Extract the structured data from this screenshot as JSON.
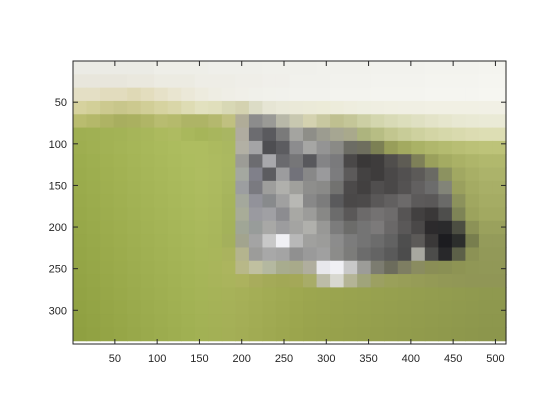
{
  "chart_data": {
    "type": "heatmap",
    "title": "",
    "xlabel": "",
    "ylabel": "",
    "xlim": [
      1,
      512
    ],
    "ylim": [
      1,
      340
    ],
    "y_direction": "reversed",
    "grid": false,
    "legend": "none",
    "xticks": [
      50,
      100,
      150,
      200,
      250,
      300,
      350,
      400,
      450,
      500
    ],
    "yticks": [
      50,
      100,
      150,
      200,
      250,
      300
    ],
    "block_size": 16,
    "grid_cols": 32,
    "grid_rows": 21,
    "content": "pixelated image of a grey and black cat lying on grass",
    "rows": [
      [
        "#ebebe5",
        "#ebebe5",
        "#ebebe5",
        "#ebebe5",
        "#ebebe5",
        "#ebebe5",
        "#eeeee8",
        "#eeeee8",
        "#eeeee8",
        "#eeeee8",
        "#efefea",
        "#efefea",
        "#efefea",
        "#efefea",
        "#f0f0eb",
        "#f0f0eb",
        "#f0f0eb",
        "#f0f0eb",
        "#f1f1ec",
        "#f1f1ec",
        "#f1f1ec",
        "#f1f1ec",
        "#f2f2ed",
        "#f2f2ed",
        "#f2f2ed",
        "#f2f2ed",
        "#f3f3ee",
        "#f3f3ee",
        "#f3f3ee",
        "#f3f3ee",
        "#f4f4ef",
        "#f4f4ef"
      ],
      [
        "#e8e6dc",
        "#e8e6dc",
        "#e8e6dc",
        "#e8e6dc",
        "#eae8de",
        "#eae8de",
        "#ecebe2",
        "#ecebe2",
        "#ecebe2",
        "#eeede6",
        "#eeede6",
        "#eeede6",
        "#efeee8",
        "#efeee8",
        "#f0efea",
        "#f0efea",
        "#f1f1ec",
        "#f1f1ec",
        "#f1f1ec",
        "#f2f2ed",
        "#f2f2ed",
        "#f2f2ed",
        "#f3f3ee",
        "#f3f3ee",
        "#f3f3ee",
        "#f3f3ee",
        "#f4f4ef",
        "#f4f4ef",
        "#f4f4ef",
        "#f4f4ef",
        "#f5f5f0",
        "#f5f5f0"
      ],
      [
        "#e4dfc5",
        "#e4dfc5",
        "#e2dcbe",
        "#e2dcbe",
        "#dfd9b6",
        "#e3ddbe",
        "#e6e1c8",
        "#e9e5d0",
        "#ebe8d8",
        "#edebde",
        "#eeede3",
        "#efeee6",
        "#f0efe8",
        "#f0f0ea",
        "#f1f1eb",
        "#f1f1ec",
        "#f2f2ed",
        "#f2f2ed",
        "#f2f2ed",
        "#f3f3ee",
        "#f3f3ee",
        "#f3f3ee",
        "#f4f4ef",
        "#f4f4ef",
        "#f4f4ef",
        "#f4f4ef",
        "#f5f5f0",
        "#f5f5f0",
        "#f5f5f0",
        "#f5f5f0",
        "#f6f6f1",
        "#f6f6f1"
      ],
      [
        "#d6d29e",
        "#d2cf98",
        "#ccc98f",
        "#c8c68b",
        "#ccc98f",
        "#d1ce97",
        "#d6d3a0",
        "#d9d6a8",
        "#dedcb4",
        "#e2e1bf",
        "#e0dfbc",
        "#d8d8b5",
        "#d4d2b0",
        "#dcdcc6",
        "#e6e5d4",
        "#e9e8d8",
        "#eae9d8",
        "#ebead8",
        "#ecebd8",
        "#edecdb",
        "#eeedde",
        "#eeeee0",
        "#efeee1",
        "#f0efe2",
        "#f0efe3",
        "#f0efe3",
        "#f1f0e4",
        "#f1f0e4",
        "#f1f0e4",
        "#f1f0e4",
        "#f1f0e5",
        "#f1f0e5"
      ],
      [
        "#b9bc6f",
        "#b4b86a",
        "#aeb364",
        "#a8ae5f",
        "#aab060",
        "#b0b566",
        "#b8bc70",
        "#b5ba6c",
        "#aeb466",
        "#aeb466",
        "#b4b86e",
        "#c0c080",
        "#b0ac98",
        "#8c8c8c",
        "#9a9a96",
        "#b8b8a8",
        "#c8c8b0",
        "#d4d2b0",
        "#c8c8a0",
        "#bfc090",
        "#c4c698",
        "#cccfa4",
        "#d3d6ae",
        "#d8dab6",
        "#dcdebc",
        "#dfe0c2",
        "#e3e3c8",
        "#e6e6cd",
        "#e8e8d2",
        "#e9e9d4",
        "#eaead6",
        "#eaead6"
      ],
      [
        "#9faf52",
        "#a0b053",
        "#a2b255",
        "#a3b356",
        "#a6b559",
        "#a8b75b",
        "#acba5e",
        "#aebb61",
        "#a9b85c",
        "#a6b559",
        "#a8b65d",
        "#a9b662",
        "#b0aca0",
        "#6c6c70",
        "#5a5a5e",
        "#7a7a7a",
        "#a4a4a0",
        "#8e8e88",
        "#9c9c90",
        "#a6a692",
        "#a9a98c",
        "#adb47e",
        "#b7bd84",
        "#c2c68f",
        "#c8cc98",
        "#ced19f",
        "#d3d5a5",
        "#d6d8aa",
        "#d9daae",
        "#dcdcb2",
        "#dddeb4",
        "#dddeb4"
      ],
      [
        "#9eae50",
        "#a0b052",
        "#a2b254",
        "#a4b456",
        "#a6b658",
        "#a8b85a",
        "#aaba5c",
        "#acbc5e",
        "#aebd60",
        "#aebd60",
        "#acba5f",
        "#aab860",
        "#b2b0a4",
        "#a4a4a6",
        "#4e4e52",
        "#5c5c60",
        "#8c8c8e",
        "#a6a6a4",
        "#949494",
        "#8a8a86",
        "#6c6c64",
        "#6e6e5e",
        "#7c8054",
        "#989e5a",
        "#a3aa60",
        "#aab266",
        "#b0b76c",
        "#b4bb70",
        "#b8be74",
        "#bbc177",
        "#bdc379",
        "#bdc379"
      ],
      [
        "#9cad4e",
        "#9eaf50",
        "#a1b152",
        "#a3b354",
        "#a5b557",
        "#a7b759",
        "#a9b95b",
        "#abbb5d",
        "#adbd5f",
        "#aebd60",
        "#adbb60",
        "#abb960",
        "#9c9c96",
        "#6c6c70",
        "#a8a8ac",
        "#6a6a6e",
        "#767678",
        "#58585c",
        "#848486",
        "#7a7a7c",
        "#4a4848",
        "#3a3838",
        "#3e3c3c",
        "#504e4c",
        "#5e5c54",
        "#7e8058",
        "#9aa05c",
        "#a4ab62",
        "#aab166",
        "#aeb56a",
        "#b1b86d",
        "#b1b86d"
      ],
      [
        "#9bac4d",
        "#9dae4f",
        "#a0b051",
        "#a2b253",
        "#a4b456",
        "#a6b658",
        "#a8b85a",
        "#aaba5c",
        "#acbc5e",
        "#aebd60",
        "#adbb60",
        "#aab860",
        "#a4a8a0",
        "#80808a",
        "#5c5c60",
        "#9c9c9e",
        "#72727a",
        "#888888",
        "#9a9a9c",
        "#7c7c7e",
        "#5c5a5a",
        "#444242",
        "#3e3c3c",
        "#4a4848",
        "#525050",
        "#5c5a58",
        "#6a6a64",
        "#8c9260",
        "#a1a862",
        "#a8af66",
        "#acb36a",
        "#acb36a"
      ],
      [
        "#9aab4c",
        "#9cad4e",
        "#9faf50",
        "#a1b152",
        "#a3b355",
        "#a5b557",
        "#a7b759",
        "#a9b95b",
        "#abbb5d",
        "#adbc5f",
        "#acba5f",
        "#a8b65e",
        "#9c9ea0",
        "#7a7a80",
        "#9e9e9c",
        "#b0b0ac",
        "#a0a09c",
        "#8e8e8c",
        "#8a8a88",
        "#727270",
        "#4c4a4a",
        "#424040",
        "#504e4e",
        "#4a4848",
        "#545252",
        "#626060",
        "#6c6c6c",
        "#828478",
        "#9aa05e",
        "#a4ab63",
        "#a8af67",
        "#a8af67"
      ],
      [
        "#99aa4b",
        "#9bac4d",
        "#9eae4f",
        "#a0b051",
        "#a2b254",
        "#a4b456",
        "#a6b658",
        "#a8b85a",
        "#aaba5c",
        "#acbb5e",
        "#abb95e",
        "#a6b45c",
        "#a4a89c",
        "#92929a",
        "#888a8c",
        "#a0a0a0",
        "#b8b8b4",
        "#888888",
        "#7c7c7c",
        "#5a5a5c",
        "#4a4848",
        "#4c4a4a",
        "#5a5858",
        "#626060",
        "#6c6a6a",
        "#5c5a5a",
        "#5a5858",
        "#6a6a68",
        "#8c925c",
        "#a0a760",
        "#a5ac64",
        "#a5ac64"
      ],
      [
        "#98a94a",
        "#9aab4c",
        "#9dad4e",
        "#9faf50",
        "#a1b153",
        "#a3b355",
        "#a5b557",
        "#a7b759",
        "#a9b95b",
        "#abba5d",
        "#aab85d",
        "#a5b35b",
        "#a8ac98",
        "#9a9aa0",
        "#a0a0a4",
        "#8c8c90",
        "#a8a8a4",
        "#9c9c9a",
        "#888886",
        "#6c6c6c",
        "#5a5858",
        "#6c6a6a",
        "#747272",
        "#6e6c6c",
        "#565454",
        "#424040",
        "#3a3838",
        "#4e4e4c",
        "#7e8456",
        "#9ca35d",
        "#a2a961",
        "#a2a961"
      ],
      [
        "#97a849",
        "#99aa4b",
        "#9cac4d",
        "#9eae4f",
        "#a0b052",
        "#a2b254",
        "#a4b456",
        "#a6b658",
        "#a8b85a",
        "#aab95c",
        "#a9b75c",
        "#a4b25a",
        "#a0a696",
        "#989c9a",
        "#a8a8a6",
        "#9c9c9e",
        "#a4a4a2",
        "#b0b0ac",
        "#989896",
        "#7c7c7c",
        "#6c6c6a",
        "#747474",
        "#7c7a7a",
        "#6a6868",
        "#5a5858",
        "#4a4848",
        "#2c2a2c",
        "#2a2a2c",
        "#4c4e42",
        "#8c9257",
        "#9aa15d",
        "#9aa15d"
      ],
      [
        "#96a748",
        "#98a94a",
        "#9bab4c",
        "#9dad4e",
        "#9faf51",
        "#a1b153",
        "#a3b355",
        "#a5b557",
        "#a7b759",
        "#a9b85b",
        "#a8b65b",
        "#a4b05c",
        "#a2a48e",
        "#a4a4a4",
        "#c8c8c8",
        "#f0f0f4",
        "#b8b8b8",
        "#a0a09e",
        "#9c9c9a",
        "#8c8c8c",
        "#7c7c7c",
        "#747474",
        "#6c6c6c",
        "#626262",
        "#4e4e4e",
        "#5c5a58",
        "#3a3838",
        "#1c1c20",
        "#2c2e2c",
        "#787e4e",
        "#949b5a",
        "#949b5a"
      ],
      [
        "#95a647",
        "#97a849",
        "#9aaa4b",
        "#9cac4d",
        "#9eae50",
        "#a0b052",
        "#a2b254",
        "#a4b456",
        "#a6b658",
        "#a8b75a",
        "#a9b65b",
        "#aab35e",
        "#b4b48e",
        "#9c9c9a",
        "#a8a8a8",
        "#a4a4a4",
        "#909090",
        "#9a9a9a",
        "#a0a0a0",
        "#8c8c8a",
        "#7c7c7a",
        "#6c6c6c",
        "#646464",
        "#5a5a5a",
        "#4c4c4c",
        "#a8a8a0",
        "#4c4c4a",
        "#28282a",
        "#5c6048",
        "#8c9255",
        "#929958",
        "#929958"
      ],
      [
        "#94a546",
        "#96a748",
        "#99a94a",
        "#9bab4c",
        "#9dad4f",
        "#9faf51",
        "#a1b153",
        "#a3b355",
        "#a5b557",
        "#a7b659",
        "#a9b55b",
        "#acb55e",
        "#b8b888",
        "#c0c0a0",
        "#b4b8a0",
        "#a8ac8e",
        "#a8aa8a",
        "#b0ae9e",
        "#e8e8ec",
        "#f0f0f4",
        "#c8c8c8",
        "#9c9c98",
        "#7c7c70",
        "#6c6c5c",
        "#7e7e62",
        "#8a8c60",
        "#8a8e56",
        "#8a9054",
        "#8e9454",
        "#909756",
        "#919857",
        "#919857"
      ],
      [
        "#93a445",
        "#95a647",
        "#98a849",
        "#9aaa4b",
        "#9cac4e",
        "#9eae50",
        "#a0b052",
        "#a2b254",
        "#a4b456",
        "#a6b558",
        "#a8b45a",
        "#aab45c",
        "#acb25e",
        "#a8ac5c",
        "#a4aa58",
        "#a2a856",
        "#a4a858",
        "#a8ac68",
        "#bcbca8",
        "#d8d8d0",
        "#b4b496",
        "#a0a47a",
        "#9ca062",
        "#9aa05a",
        "#989e58",
        "#969c57",
        "#949a56",
        "#929856",
        "#919756",
        "#909656",
        "#909656",
        "#909656"
      ],
      [
        "#92a344",
        "#94a546",
        "#97a748",
        "#99a94a",
        "#9bab4d",
        "#9dad4f",
        "#9faf51",
        "#a1b153",
        "#a3b355",
        "#a5b457",
        "#a6b358",
        "#a7b259",
        "#a6b058",
        "#a4ae56",
        "#a2ac54",
        "#a0aa52",
        "#9ea850",
        "#9ca64f",
        "#9ba54f",
        "#9aa44f",
        "#99a34f",
        "#98a24f",
        "#97a14f",
        "#96a04f",
        "#959f4f",
        "#949e4f",
        "#939d4f",
        "#929c4f",
        "#919b4f",
        "#909a4f",
        "#8f994f",
        "#8f994f"
      ],
      [
        "#91a243",
        "#93a445",
        "#96a647",
        "#98a849",
        "#9aaa4c",
        "#9cac4e",
        "#9eae50",
        "#a0b052",
        "#a2b254",
        "#a4b356",
        "#a5b257",
        "#a6b158",
        "#a5af57",
        "#a3ad55",
        "#a1ab53",
        "#9fa951",
        "#9da74f",
        "#9ba54e",
        "#9aa44e",
        "#99a34e",
        "#98a24e",
        "#97a14e",
        "#96a04e",
        "#959f4e",
        "#949e4e",
        "#939d4e",
        "#929c4e",
        "#919b4e",
        "#909a4e",
        "#8f994e",
        "#8e984e",
        "#8e984e"
      ],
      [
        "#90a142",
        "#92a344",
        "#95a546",
        "#97a748",
        "#99a94b",
        "#9bab4d",
        "#9dad4f",
        "#9faf51",
        "#a1b153",
        "#a3b255",
        "#a4b156",
        "#a5b057",
        "#a4ae56",
        "#a2ac54",
        "#a0aa52",
        "#9ea850",
        "#9ca64e",
        "#9aa44d",
        "#99a34d",
        "#98a24d",
        "#97a14d",
        "#96a04d",
        "#959f4d",
        "#949e4d",
        "#939d4d",
        "#929c4d",
        "#919b4d",
        "#909a4d",
        "#8f994d",
        "#8e984d",
        "#8d974d",
        "#8d974d"
      ],
      [
        "#8fa041",
        "#91a243",
        "#94a445",
        "#96a647",
        "#98a84a",
        "#9aaa4c",
        "#9cac4e",
        "#9eae50",
        "#a0b052",
        "#a2b154",
        "#a3b055",
        "#a4af56",
        "#a3ad55",
        "#a1ab53",
        "#9fa951",
        "#9da74f",
        "#9ba54d",
        "#99a34c",
        "#98a24c",
        "#97a14c",
        "#96a04c",
        "#959f4c",
        "#949e4c",
        "#939d4c",
        "#929c4c",
        "#919b4c",
        "#909a4c",
        "#8f994c",
        "#8e984c",
        "#8d974c",
        "#8c964c",
        "#8c964c"
      ]
    ]
  }
}
